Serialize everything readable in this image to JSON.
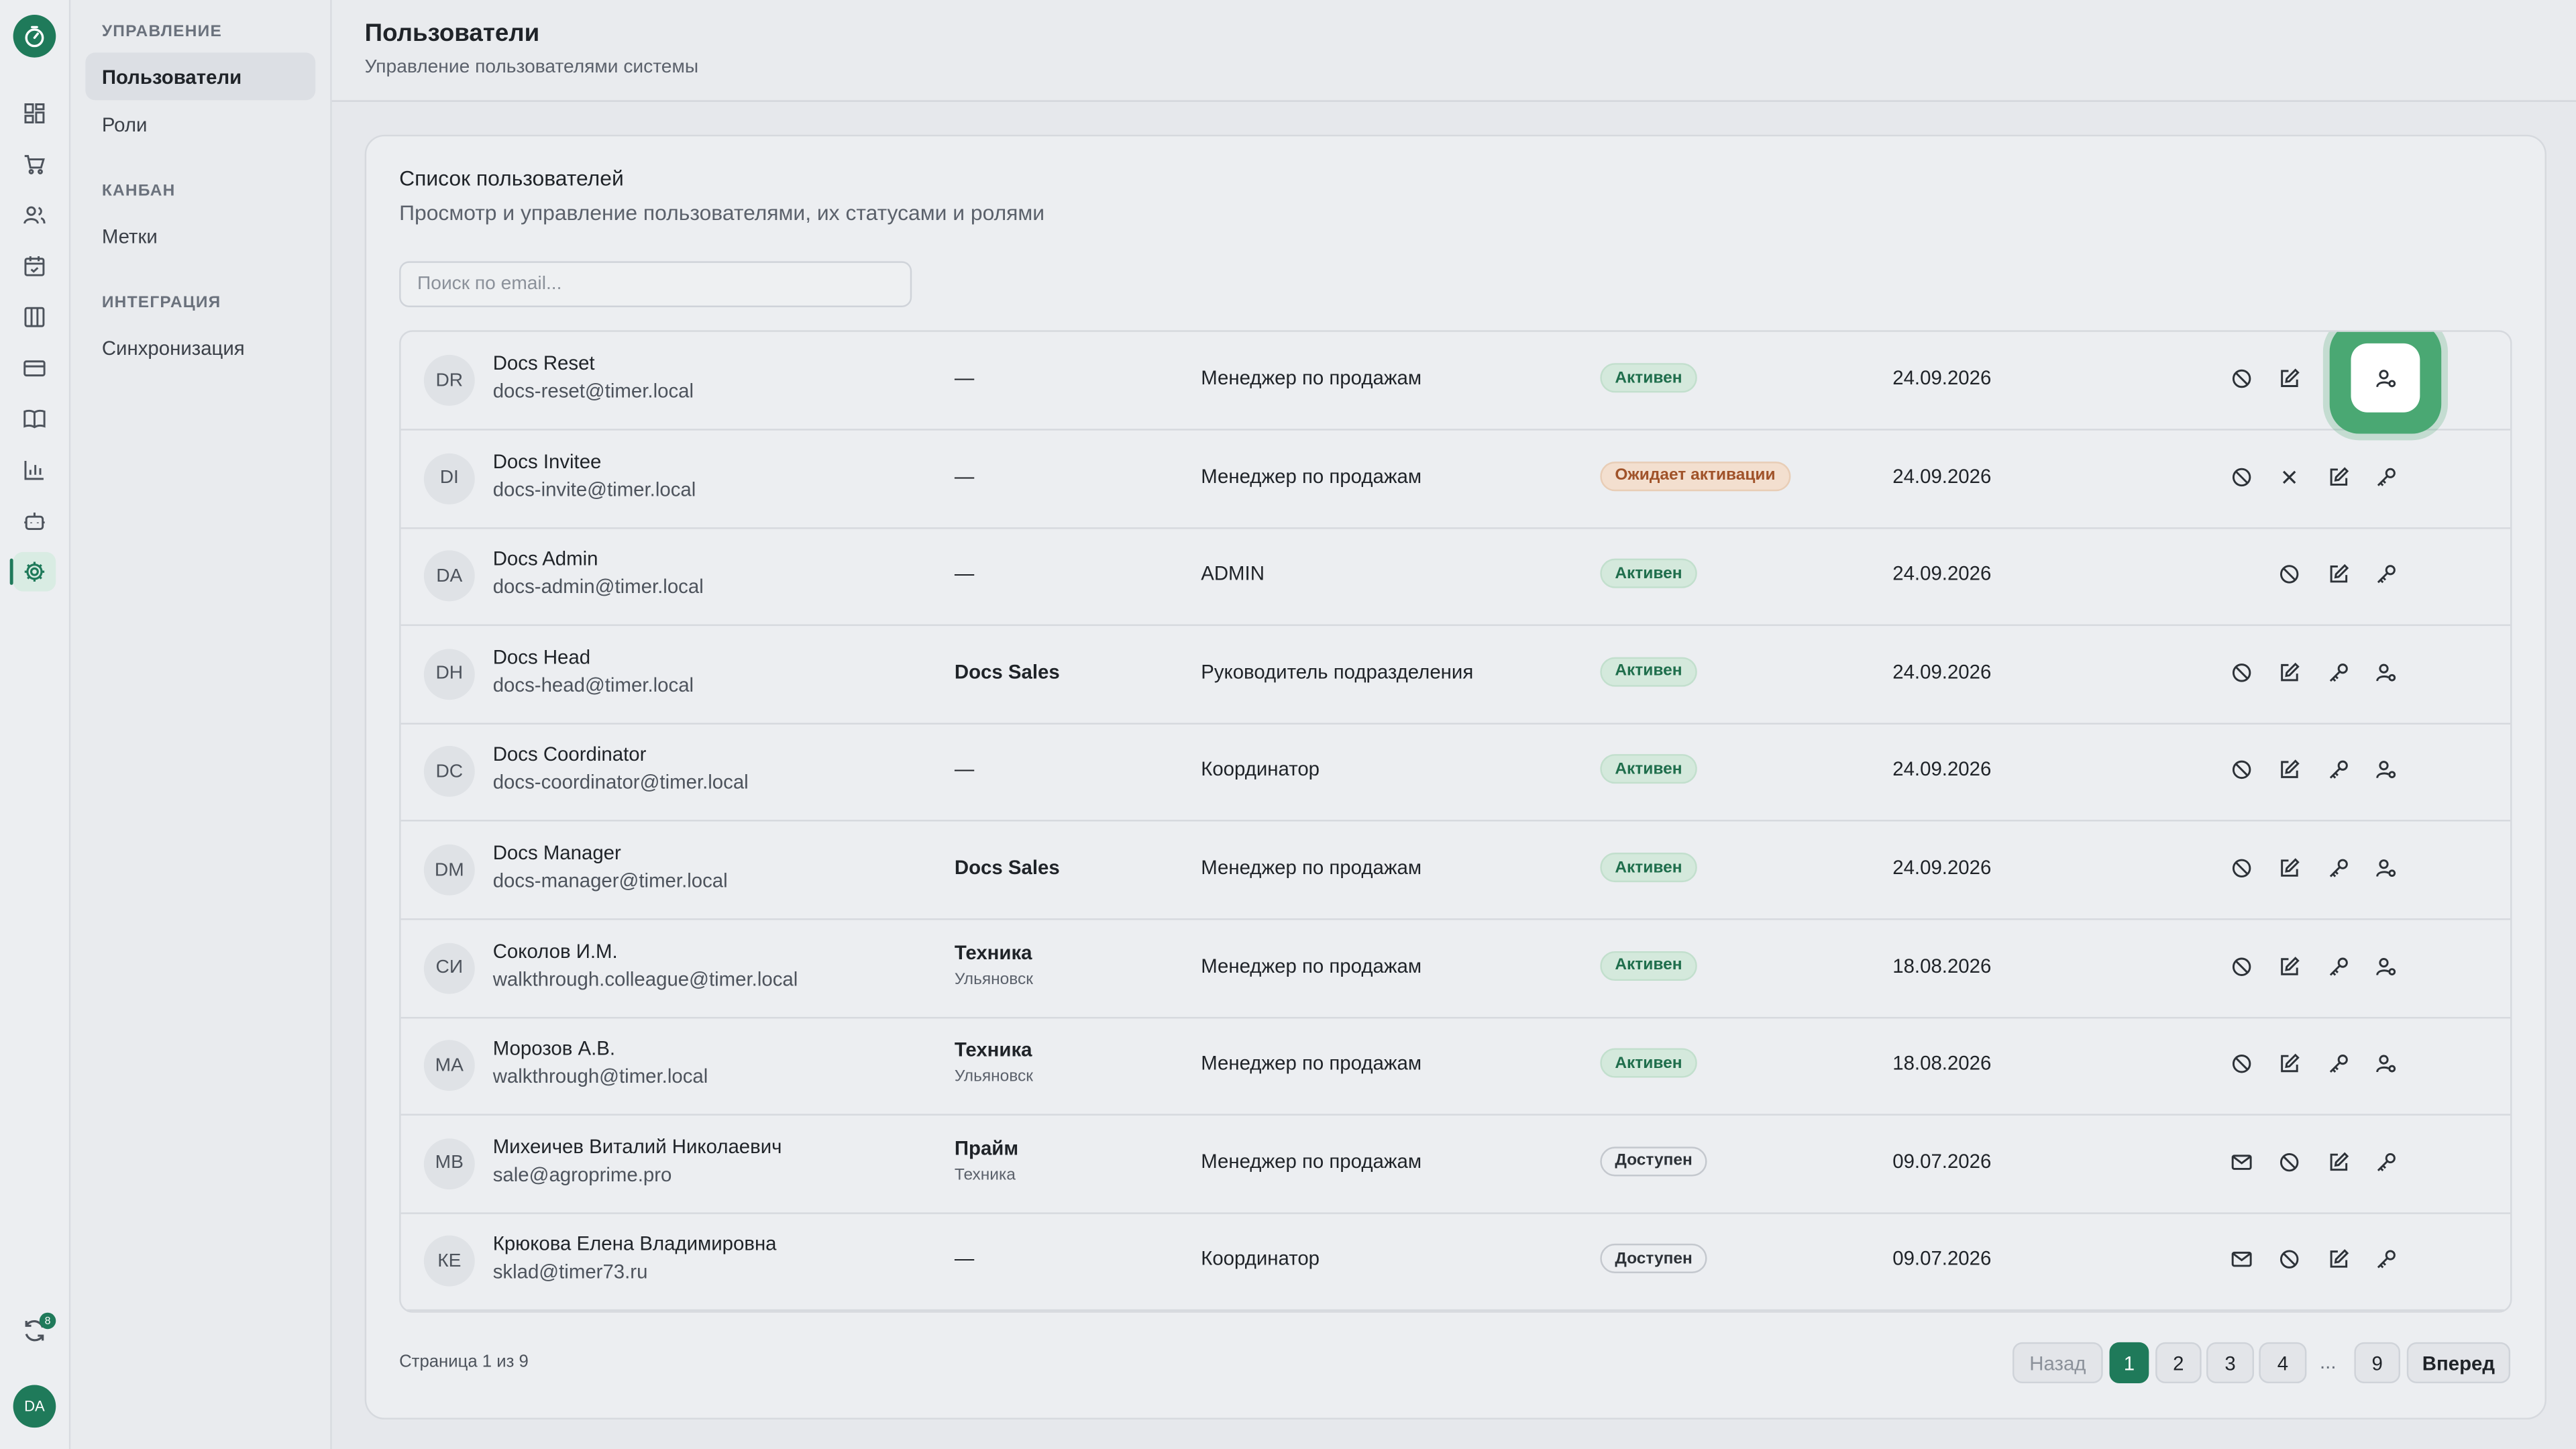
{
  "sidebar": {
    "sections": [
      {
        "title": "УПРАВЛЕНИЕ",
        "items": [
          "Пользователи",
          "Роли"
        ]
      },
      {
        "title": "КАНБАН",
        "items": [
          "Метки"
        ]
      },
      {
        "title": "ИНТЕГРАЦИЯ",
        "items": [
          "Синхронизация"
        ]
      }
    ],
    "sync_badge": "8",
    "user_initials": "DA"
  },
  "header": {
    "title": "Пользователи",
    "subtitle": "Управление пользователями системы"
  },
  "card": {
    "title": "Список пользователей",
    "subtitle": "Просмотр и управление пользователями, их статусами и ролями",
    "search_placeholder": "Поиск по email..."
  },
  "users": [
    {
      "initials": "DR",
      "name": "Docs Reset",
      "email": "docs-reset@timer.local",
      "dept": "—",
      "dept_sub": "",
      "role": "Менеджер по продажам",
      "status": "Активен",
      "status_kind": "active",
      "date": "24.09.2026",
      "actions": [
        "block-icon",
        "edit-icon",
        "key-icon",
        "user-role-icon"
      ]
    },
    {
      "initials": "DI",
      "name": "Docs Invitee",
      "email": "docs-invite@timer.local",
      "dept": "—",
      "dept_sub": "",
      "role": "Менеджер по продажам",
      "status": "Ожидает активации",
      "status_kind": "pending",
      "date": "24.09.2026",
      "actions": [
        "block-icon",
        "close-icon",
        "edit-icon",
        "key-icon"
      ]
    },
    {
      "initials": "DA",
      "name": "Docs Admin",
      "email": "docs-admin@timer.local",
      "dept": "—",
      "dept_sub": "",
      "role": "ADMIN",
      "status": "Активен",
      "status_kind": "active",
      "date": "24.09.2026",
      "actions": [
        "",
        "block-icon",
        "edit-icon",
        "key-icon"
      ]
    },
    {
      "initials": "DH",
      "name": "Docs Head",
      "email": "docs-head@timer.local",
      "dept": "Docs Sales",
      "dept_sub": "",
      "role": "Руководитель подразделения",
      "status": "Активен",
      "status_kind": "active",
      "date": "24.09.2026",
      "actions": [
        "block-icon",
        "edit-icon",
        "key-icon",
        "user-role-icon"
      ]
    },
    {
      "initials": "DC",
      "name": "Docs Coordinator",
      "email": "docs-coordinator@timer.local",
      "dept": "—",
      "dept_sub": "",
      "role": "Координатор",
      "status": "Активен",
      "status_kind": "active",
      "date": "24.09.2026",
      "actions": [
        "block-icon",
        "edit-icon",
        "key-icon",
        "user-role-icon"
      ]
    },
    {
      "initials": "DM",
      "name": "Docs Manager",
      "email": "docs-manager@timer.local",
      "dept": "Docs Sales",
      "dept_sub": "",
      "role": "Менеджер по продажам",
      "status": "Активен",
      "status_kind": "active",
      "date": "24.09.2026",
      "actions": [
        "block-icon",
        "edit-icon",
        "key-icon",
        "user-role-icon"
      ]
    },
    {
      "initials": "СИ",
      "name": "Соколов И.М.",
      "email": "walkthrough.colleague@timer.local",
      "dept": "Техника",
      "dept_sub": "Ульяновск",
      "role": "Менеджер по продажам",
      "status": "Активен",
      "status_kind": "active",
      "date": "18.08.2026",
      "actions": [
        "block-icon",
        "edit-icon",
        "key-icon",
        "user-role-icon"
      ]
    },
    {
      "initials": "МА",
      "name": "Морозов А.В.",
      "email": "walkthrough@timer.local",
      "dept": "Техника",
      "dept_sub": "Ульяновск",
      "role": "Менеджер по продажам",
      "status": "Активен",
      "status_kind": "active",
      "date": "18.08.2026",
      "actions": [
        "block-icon",
        "edit-icon",
        "key-icon",
        "user-role-icon"
      ]
    },
    {
      "initials": "МВ",
      "name": "Михеичев Виталий Николаевич",
      "email": "sale@agroprime.pro",
      "dept": "Прайм",
      "dept_sub": "Техника",
      "role": "Менеджер по продажам",
      "status": "Доступен",
      "status_kind": "avail",
      "date": "09.07.2026",
      "actions": [
        "mail-icon",
        "block-icon",
        "edit-icon",
        "key-icon"
      ]
    },
    {
      "initials": "КЕ",
      "name": "Крюкова Елена Владимировна",
      "email": "sklad@timer73.ru",
      "dept": "—",
      "dept_sub": "",
      "role": "Координатор",
      "status": "Доступен",
      "status_kind": "avail",
      "date": "09.07.2026",
      "actions": [
        "mail-icon",
        "block-icon",
        "edit-icon",
        "key-icon"
      ]
    }
  ],
  "pagination": {
    "info": "Страница 1 из 9",
    "prev": "Назад",
    "pages": [
      "1",
      "2",
      "3",
      "4"
    ],
    "dots": "...",
    "last": "9",
    "next": "Вперед",
    "current": "1"
  },
  "colors": {
    "accent": "#1f7a5a",
    "highlight": "#4aa873"
  }
}
